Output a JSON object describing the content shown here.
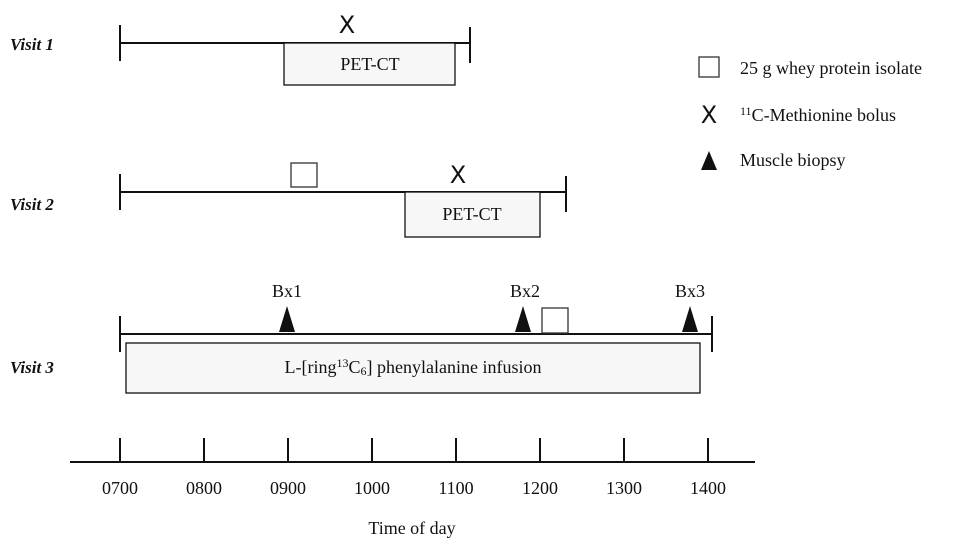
{
  "visits": [
    {
      "label": "Visit 1",
      "box": "PET-CT"
    },
    {
      "label": "Visit 2",
      "box": "PET-CT"
    },
    {
      "label": "Visit 3",
      "box": [
        {
          "text": "L-[ring"
        },
        {
          "sup": "13"
        },
        {
          "text": "C"
        },
        {
          "sub": "6"
        },
        {
          "text": "] phenylalanine infusion"
        }
      ],
      "biopsies": [
        "Bx1",
        "Bx2",
        "Bx3"
      ]
    }
  ],
  "legend": [
    {
      "text": "25 g whey protein isolate"
    },
    {
      "symbol": "X",
      "text": [
        {
          "sup": "11"
        },
        {
          "text": "C-Methionine bolus"
        }
      ]
    },
    {
      "text": "Muscle biopsy"
    }
  ],
  "axis": {
    "ticks": [
      "0700",
      "0800",
      "0900",
      "1000",
      "1100",
      "1200",
      "1300",
      "1400"
    ],
    "label": "Time of day"
  }
}
